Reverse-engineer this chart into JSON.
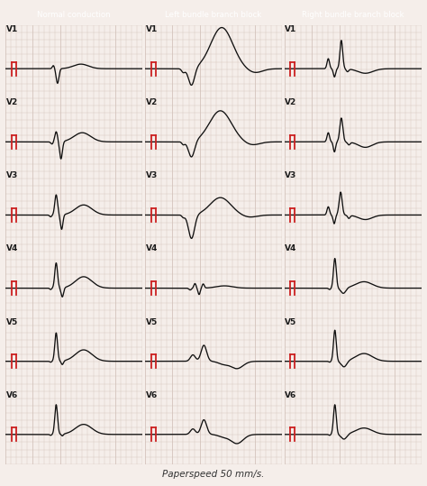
{
  "title_normal": "Normal conduction",
  "title_lbbb": "Left bundle branch block",
  "title_rbbb": "Right bundle branch block",
  "title_color": "#ffffff",
  "title_bg_normal": "#3aacac",
  "title_bg_lbbb": "#d4b84a",
  "title_bg_rbbb": "#8fb84a",
  "bg_color": "#f5eeea",
  "grid_major_color": "#d4c4bc",
  "grid_minor_color": "#e8ddd8",
  "ecg_color": "#111111",
  "cal_color": "#cc2222",
  "footer": "Paperspeed 50 mm/s.",
  "leads": [
    "V1",
    "V2",
    "V3",
    "V4",
    "V5",
    "V6"
  ],
  "figsize": [
    4.74,
    5.39
  ],
  "dpi": 100
}
